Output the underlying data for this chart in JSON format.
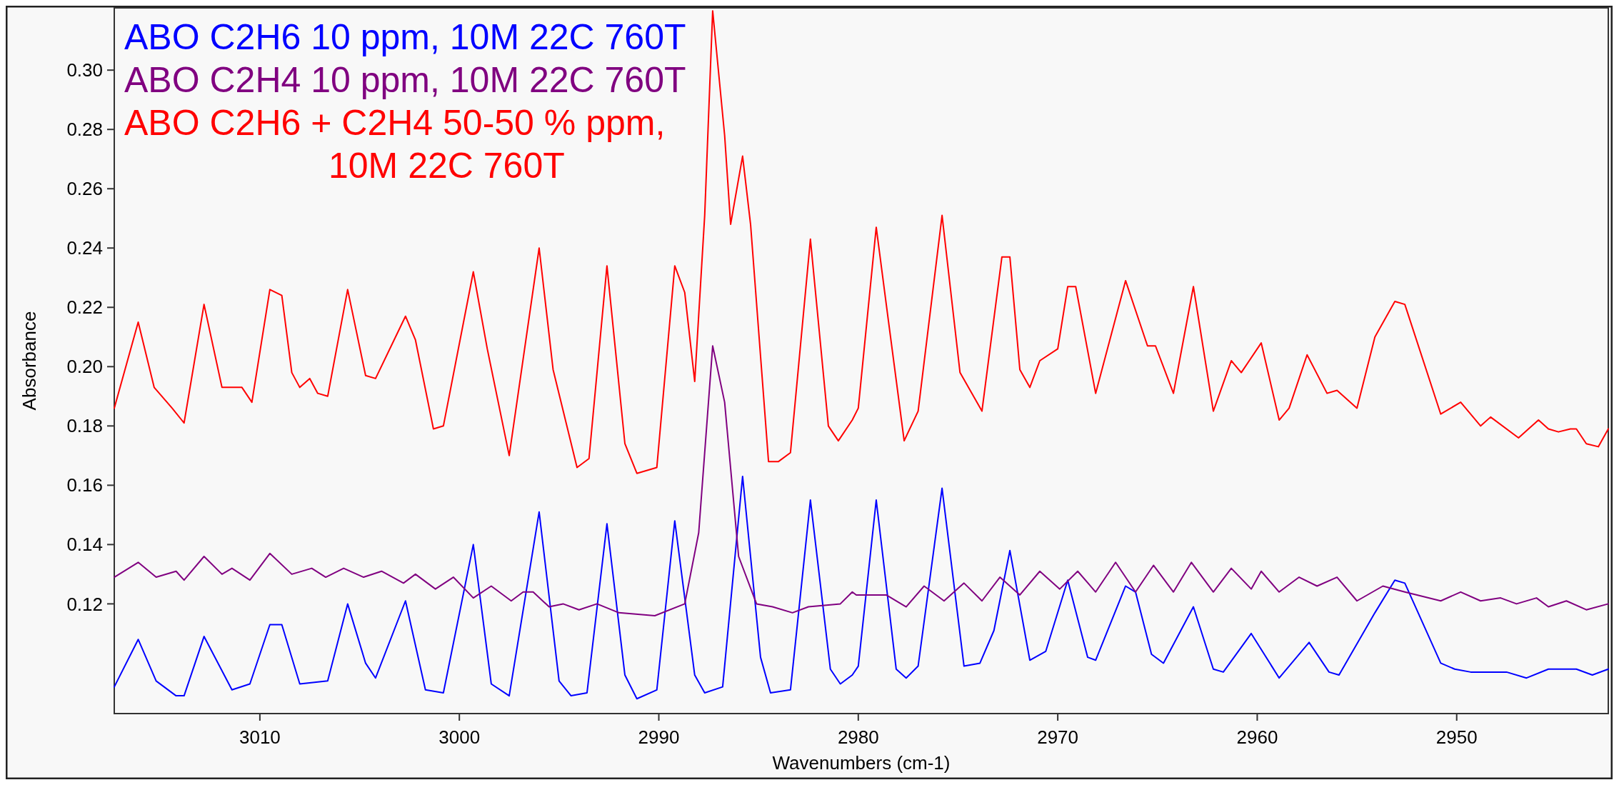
{
  "chart_data": {
    "type": "line",
    "xlabel": "Wavenumbers (cm-1)",
    "ylabel": "Absorbance",
    "xlim": [
      3017.3,
      2942.4
    ],
    "ylim": [
      0.083,
      0.321
    ],
    "xticks": [
      3010,
      3000,
      2990,
      2980,
      2970,
      2960,
      2950
    ],
    "yticks": [
      0.12,
      0.14,
      0.16,
      0.18,
      {
        "value": 0.2,
        "label": "0.20"
      },
      0.22,
      0.24,
      0.26,
      0.28,
      {
        "value": 0.3,
        "label": "0.30"
      }
    ],
    "grid": false,
    "legend": "top left",
    "marker": "none",
    "line_style": "solid",
    "series": [
      {
        "name": "ABO C2H6 10 ppm, 10M 22C 760T",
        "color": "#0000ff",
        "x": [
          3017.3,
          3016.1,
          3015.2,
          3014.2,
          3013.8,
          3012.8,
          3011.4,
          3010.5,
          3009.5,
          3008.9,
          3008.0,
          3006.6,
          3005.6,
          3004.7,
          3004.2,
          3002.7,
          3001.7,
          3000.8,
          2999.3,
          2998.4,
          2997.5,
          2996.0,
          2995.0,
          2994.4,
          2993.6,
          2992.6,
          2991.7,
          2991.1,
          2990.1,
          2989.2,
          2988.2,
          2987.7,
          2986.8,
          2985.8,
          2984.9,
          2984.4,
          2983.4,
          2982.4,
          2981.4,
          2980.9,
          2980.3,
          2980.0,
          2979.1,
          2978.1,
          2977.6,
          2977.0,
          2975.8,
          2974.7,
          2973.9,
          2973.2,
          2972.4,
          2971.4,
          2970.6,
          2969.5,
          2968.5,
          2968.1,
          2966.6,
          2966.1,
          2965.3,
          2964.7,
          2963.2,
          2962.2,
          2961.7,
          2960.3,
          2958.9,
          2957.4,
          2956.4,
          2955.9,
          2954.1,
          2953.1,
          2952.6,
          2950.8,
          2950.1,
          2949.3,
          2948.3,
          2947.5,
          2946.5,
          2945.4,
          2944.0,
          2943.2,
          2942.4
        ],
        "values": [
          0.092,
          0.108,
          0.094,
          0.089,
          0.089,
          0.109,
          0.091,
          0.093,
          0.113,
          0.113,
          0.093,
          0.094,
          0.12,
          0.1,
          0.095,
          0.121,
          0.091,
          0.09,
          0.14,
          0.093,
          0.089,
          0.151,
          0.094,
          0.089,
          0.09,
          0.147,
          0.096,
          0.088,
          0.091,
          0.148,
          0.096,
          0.09,
          0.092,
          0.163,
          0.102,
          0.09,
          0.091,
          0.155,
          0.098,
          0.093,
          0.096,
          0.099,
          0.155,
          0.098,
          0.095,
          0.099,
          0.159,
          0.099,
          0.1,
          0.111,
          0.138,
          0.101,
          0.104,
          0.128,
          0.102,
          0.101,
          0.126,
          0.124,
          0.103,
          0.1,
          0.119,
          0.098,
          0.097,
          0.11,
          0.095,
          0.107,
          0.097,
          0.096,
          0.117,
          0.128,
          0.127,
          0.1,
          0.098,
          0.097,
          0.097,
          0.097,
          0.095,
          0.098,
          0.098,
          0.096,
          0.098
        ]
      },
      {
        "name": "ABO C2H4 10 ppm, 10M 22C 760T",
        "color": "#800080",
        "x": [
          3017.3,
          3016.1,
          3015.2,
          3014.2,
          3013.8,
          3012.8,
          3011.9,
          3011.4,
          3010.5,
          3009.5,
          3008.4,
          3007.4,
          3006.7,
          3005.8,
          3004.8,
          3003.9,
          3002.8,
          3002.2,
          3001.2,
          3000.3,
          2999.3,
          2998.4,
          2997.4,
          2996.8,
          2996.3,
          2995.5,
          2994.8,
          2994.0,
          2993.1,
          2992.0,
          2990.2,
          2988.7,
          2988.0,
          2987.3,
          2986.7,
          2986.0,
          2985.1,
          2984.3,
          2983.3,
          2982.5,
          2980.9,
          2980.3,
          2980.1,
          2978.6,
          2977.6,
          2976.7,
          2975.7,
          2974.7,
          2973.8,
          2972.9,
          2971.9,
          2970.9,
          2969.9,
          2969.0,
          2968.1,
          2967.1,
          2966.1,
          2965.2,
          2964.2,
          2963.3,
          2962.2,
          2961.3,
          2960.3,
          2959.8,
          2958.9,
          2957.9,
          2957.0,
          2956.0,
          2955.0,
          2953.7,
          2952.6,
          2950.8,
          2949.8,
          2948.8,
          2947.8,
          2947.0,
          2946.0,
          2945.4,
          2944.5,
          2943.5,
          2942.4
        ],
        "values": [
          0.129,
          0.134,
          0.129,
          0.131,
          0.128,
          0.136,
          0.13,
          0.132,
          0.128,
          0.137,
          0.13,
          0.132,
          0.129,
          0.132,
          0.129,
          0.131,
          0.127,
          0.13,
          0.125,
          0.129,
          0.122,
          0.126,
          0.121,
          0.124,
          0.124,
          0.119,
          0.12,
          0.118,
          0.12,
          0.117,
          0.116,
          0.12,
          0.144,
          0.207,
          0.188,
          0.136,
          0.12,
          0.119,
          0.117,
          0.119,
          0.12,
          0.124,
          0.123,
          0.123,
          0.119,
          0.126,
          0.121,
          0.127,
          0.121,
          0.129,
          0.123,
          0.131,
          0.125,
          0.131,
          0.124,
          0.134,
          0.124,
          0.133,
          0.124,
          0.134,
          0.124,
          0.132,
          0.125,
          0.131,
          0.124,
          0.129,
          0.126,
          0.129,
          0.121,
          0.126,
          0.124,
          0.121,
          0.124,
          0.121,
          0.122,
          0.12,
          0.122,
          0.119,
          0.121,
          0.118,
          0.12
        ]
      },
      {
        "name": "ABO C2H6 + C2H4 50-50 % ppm,\n10M 22C 760T",
        "color": "#ff0000",
        "x": [
          3017.3,
          3016.1,
          3015.3,
          3014.4,
          3013.8,
          3012.8,
          3011.9,
          3010.9,
          3010.4,
          3009.5,
          3008.9,
          3008.4,
          3008.0,
          3007.5,
          3007.1,
          3006.6,
          3005.6,
          3004.7,
          3004.2,
          3002.7,
          3002.2,
          3001.3,
          3000.8,
          2999.3,
          2998.6,
          2997.5,
          2996.0,
          2995.3,
          2994.1,
          2993.5,
          2992.6,
          2991.7,
          2991.1,
          2990.1,
          2989.2,
          2988.7,
          2988.2,
          2987.7,
          2987.3,
          2986.7,
          2986.4,
          2985.8,
          2985.4,
          2984.5,
          2984.0,
          2983.4,
          2982.4,
          2981.5,
          2981.0,
          2980.3,
          2980.0,
          2979.1,
          2978.5,
          2977.7,
          2977.0,
          2975.8,
          2974.9,
          2973.8,
          2972.8,
          2972.4,
          2971.9,
          2971.4,
          2970.9,
          2970.0,
          2969.5,
          2969.1,
          2968.1,
          2966.6,
          2965.5,
          2965.1,
          2964.2,
          2963.2,
          2962.2,
          2961.3,
          2960.8,
          2959.8,
          2958.9,
          2958.4,
          2957.5,
          2956.5,
          2956.0,
          2955.0,
          2954.1,
          2953.1,
          2952.6,
          2950.8,
          2949.8,
          2948.8,
          2948.3,
          2946.9,
          2945.9,
          2945.4,
          2944.9,
          2944.3,
          2944.0,
          2943.5,
          2942.9,
          2942.4
        ],
        "values": [
          0.186,
          0.215,
          0.193,
          0.186,
          0.181,
          0.221,
          0.193,
          0.193,
          0.188,
          0.226,
          0.224,
          0.198,
          0.193,
          0.196,
          0.191,
          0.19,
          0.226,
          0.197,
          0.196,
          0.217,
          0.209,
          0.179,
          0.18,
          0.232,
          0.206,
          0.17,
          0.24,
          0.199,
          0.166,
          0.169,
          0.234,
          0.174,
          0.164,
          0.166,
          0.234,
          0.225,
          0.195,
          0.251,
          0.32,
          0.278,
          0.248,
          0.271,
          0.248,
          0.168,
          0.168,
          0.171,
          0.243,
          0.18,
          0.175,
          0.182,
          0.186,
          0.247,
          0.216,
          0.175,
          0.185,
          0.251,
          0.198,
          0.185,
          0.237,
          0.237,
          0.199,
          0.193,
          0.202,
          0.206,
          0.227,
          0.227,
          0.191,
          0.229,
          0.207,
          0.207,
          0.191,
          0.227,
          0.185,
          0.202,
          0.198,
          0.208,
          0.182,
          0.186,
          0.204,
          0.191,
          0.192,
          0.186,
          0.21,
          0.222,
          0.221,
          0.184,
          0.188,
          0.18,
          0.183,
          0.176,
          0.182,
          0.179,
          0.178,
          0.179,
          0.179,
          0.174,
          0.173,
          0.179
        ]
      }
    ]
  }
}
